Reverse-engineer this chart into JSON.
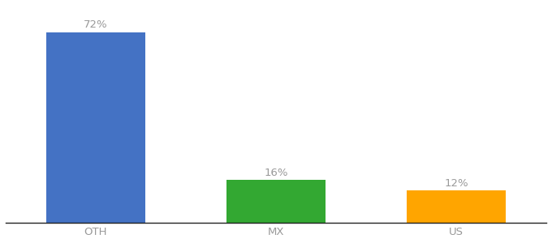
{
  "categories": [
    "OTH",
    "MX",
    "US"
  ],
  "values": [
    72,
    16,
    12
  ],
  "labels": [
    "72%",
    "16%",
    "12%"
  ],
  "bar_colors": [
    "#4472C4",
    "#33A832",
    "#FFA500"
  ],
  "background_color": "#ffffff",
  "ylim": [
    0,
    82
  ],
  "bar_width": 0.55,
  "label_fontsize": 9.5,
  "tick_fontsize": 9.5,
  "label_color": "#999999",
  "tick_color": "#999999",
  "x_positions": [
    0.5,
    1.5,
    2.5
  ]
}
